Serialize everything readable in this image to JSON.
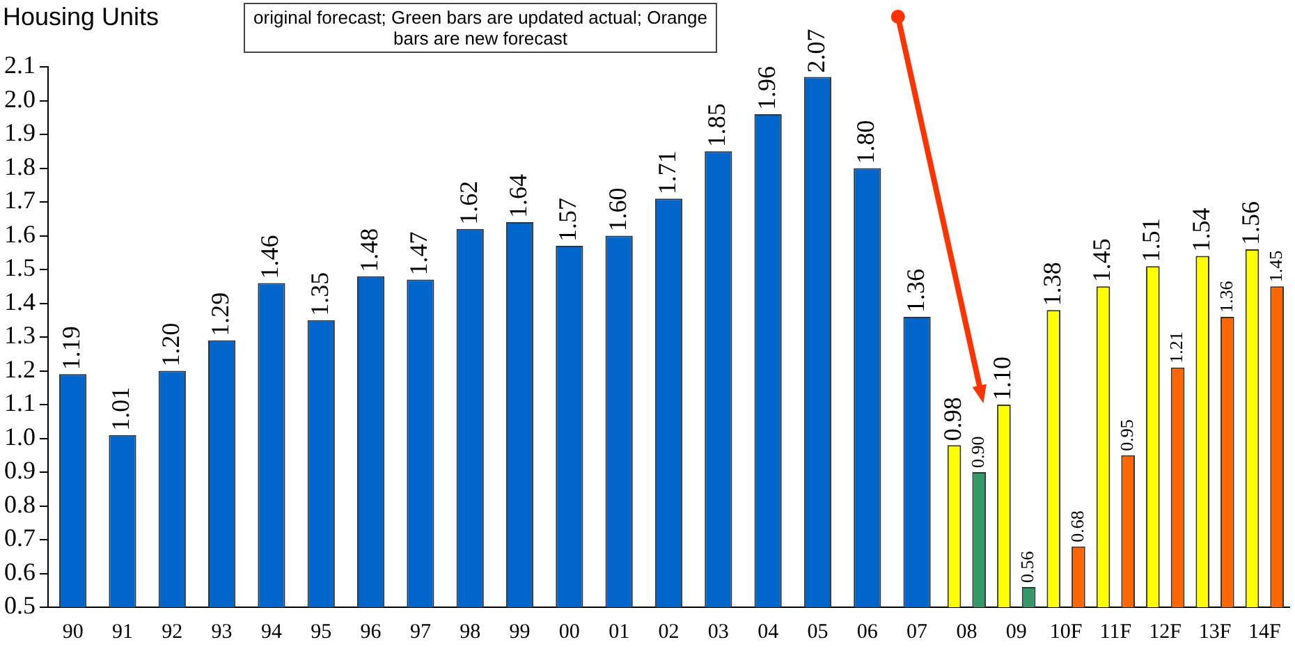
{
  "chart_data": {
    "type": "bar",
    "ylabel": "Housing Units",
    "annotations": [
      "original forecast; Green bars are updated actual; Orange bars are new forecast"
    ],
    "categories": [
      "90",
      "91",
      "92",
      "93",
      "94",
      "95",
      "96",
      "97",
      "98",
      "99",
      "00",
      "01",
      "02",
      "03",
      "04",
      "05",
      "06",
      "07",
      "08",
      "09",
      "10F",
      "11F",
      "12F",
      "13F",
      "14F"
    ],
    "series": [
      {
        "color": "#0066cc",
        "values": [
          1.19,
          1.01,
          1.2,
          1.29,
          1.46,
          1.35,
          1.48,
          1.47,
          1.62,
          1.64,
          1.57,
          1.6,
          1.71,
          1.85,
          1.96,
          2.07,
          1.8,
          1.36,
          null,
          null,
          null,
          null,
          null,
          null,
          null
        ],
        "value_labels": [
          "1.19",
          "1.01",
          "1.20",
          "1.29",
          "1.46",
          "1.35",
          "1.48",
          "1.47",
          "1.62",
          "1.64",
          "1.57",
          "1.60",
          "1.71",
          "1.85",
          "1.96",
          "2.07",
          "1.80",
          "1.36",
          null,
          null,
          null,
          null,
          null,
          null,
          null
        ]
      },
      {
        "color": "#ffff00",
        "values": [
          null,
          null,
          null,
          null,
          null,
          null,
          null,
          null,
          null,
          null,
          null,
          null,
          null,
          null,
          null,
          null,
          null,
          null,
          0.98,
          1.1,
          1.38,
          1.45,
          1.51,
          1.54,
          1.56
        ],
        "value_labels": [
          null,
          null,
          null,
          null,
          null,
          null,
          null,
          null,
          null,
          null,
          null,
          null,
          null,
          null,
          null,
          null,
          null,
          null,
          "0.98",
          "1.10",
          "1.38",
          "1.45",
          "1.51",
          "1.54",
          "1.56"
        ]
      },
      {
        "color": "#339966",
        "values": [
          null,
          null,
          null,
          null,
          null,
          null,
          null,
          null,
          null,
          null,
          null,
          null,
          null,
          null,
          null,
          null,
          null,
          null,
          0.9,
          0.56,
          null,
          null,
          null,
          null,
          null
        ],
        "value_labels": [
          null,
          null,
          null,
          null,
          null,
          null,
          null,
          null,
          null,
          null,
          null,
          null,
          null,
          null,
          null,
          null,
          null,
          null,
          "0.90",
          "0.56",
          null,
          null,
          null,
          null,
          null
        ]
      },
      {
        "color": "#ff6600",
        "values": [
          null,
          null,
          null,
          null,
          null,
          null,
          null,
          null,
          null,
          null,
          null,
          null,
          null,
          null,
          null,
          null,
          null,
          null,
          null,
          null,
          0.68,
          0.95,
          1.21,
          1.36,
          1.45
        ],
        "value_labels": [
          null,
          null,
          null,
          null,
          null,
          null,
          null,
          null,
          null,
          null,
          null,
          null,
          null,
          null,
          null,
          null,
          null,
          null,
          null,
          null,
          "0.68",
          "0.95",
          "1.21",
          "1.36",
          "1.45"
        ]
      }
    ],
    "ylim": [
      0.5,
      2.1
    ],
    "yticks": [
      0.5,
      0.6,
      0.7,
      0.8,
      0.9,
      {
        "value": 1,
        "label": "1.0"
      },
      1.1,
      1.2,
      1.3,
      1.4,
      1.5,
      1.6,
      1.7,
      1.8,
      1.9,
      {
        "value": 2,
        "label": "2.0"
      },
      2.1
    ],
    "grid": false,
    "legend": false
  }
}
